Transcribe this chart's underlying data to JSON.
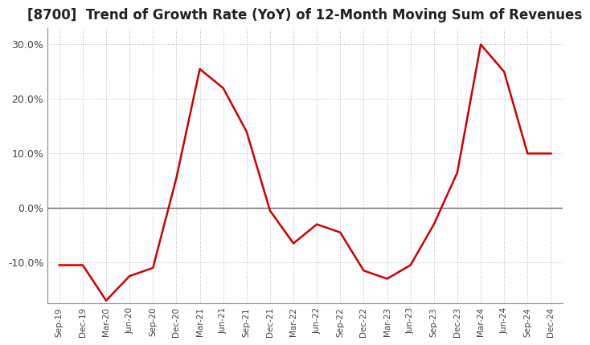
{
  "title": "[8700]  Trend of Growth Rate (YoY) of 12-Month Moving Sum of Revenues",
  "title_fontsize": 12,
  "line_color": "#cc0000",
  "background_color": "#ffffff",
  "plot_bg_color": "#ffffff",
  "grid_color": "#bbbbbb",
  "ylim": [
    -17.5,
    33
  ],
  "yticks": [
    -10,
    0,
    10,
    20,
    30
  ],
  "labels": [
    "Sep-19",
    "Dec-19",
    "Mar-20",
    "Jun-20",
    "Sep-20",
    "Dec-20",
    "Mar-21",
    "Jun-21",
    "Sep-21",
    "Dec-21",
    "Mar-22",
    "Jun-22",
    "Sep-22",
    "Dec-22",
    "Mar-23",
    "Jun-23",
    "Sep-23",
    "Dec-23",
    "Mar-24",
    "Jun-24",
    "Sep-24",
    "Dec-24"
  ],
  "values": [
    -10.5,
    -10.5,
    -17.0,
    -12.5,
    -11.0,
    5.5,
    25.5,
    22.0,
    14.0,
    -0.5,
    -6.5,
    -3.0,
    -4.5,
    -11.5,
    -13.0,
    -10.5,
    -3.0,
    6.5,
    30.0,
    25.0,
    10.0,
    10.0
  ]
}
